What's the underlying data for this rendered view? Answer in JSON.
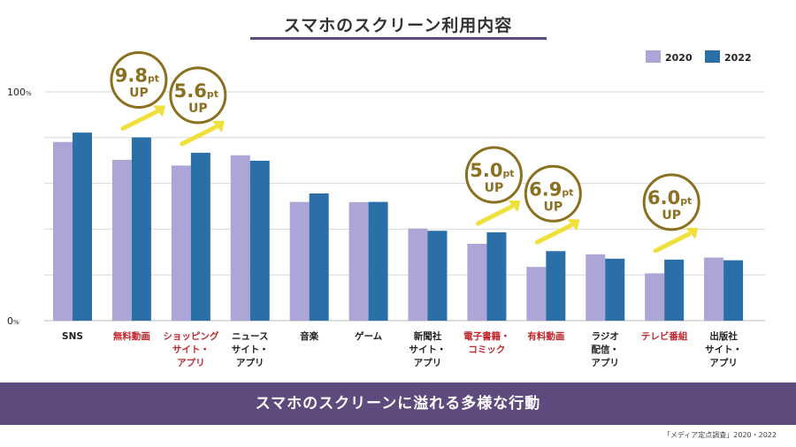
{
  "title": "スマホのスクリーン利用内容",
  "banner": "スマホのスクリーンに溢れる多様な行動",
  "source": "「メディア定点調査」2020・2022",
  "colors": {
    "s2020": "#aba6d6",
    "s2022": "#2a6fa8",
    "highlight": "#c0282d",
    "label": "#222222",
    "grid": "#d9d9d9",
    "badge_ring": "#8a7020",
    "badge_text": "#8a7020",
    "arrow": "#f0e03c"
  },
  "chart_data": {
    "type": "bar",
    "title": "スマホのスクリーン利用内容",
    "ylim": [
      0,
      100
    ],
    "y_ticks": [
      "0%",
      "100%"
    ],
    "grid": true,
    "legend_position": "top-right",
    "categories": [
      {
        "label": "SNS",
        "highlight": false
      },
      {
        "label": "無料動画",
        "highlight": true
      },
      {
        "label": "ショッピング\nサイト・\nアプリ",
        "highlight": true
      },
      {
        "label": "ニュース\nサイト・\nアプリ",
        "highlight": false
      },
      {
        "label": "音楽",
        "highlight": false
      },
      {
        "label": "ゲーム",
        "highlight": false
      },
      {
        "label": "新聞社\nサイト・\nアプリ",
        "highlight": false
      },
      {
        "label": "電子書籍・\nコミック",
        "highlight": true
      },
      {
        "label": "有料動画",
        "highlight": true
      },
      {
        "label": "ラジオ\n配信・\nアプリ",
        "highlight": false
      },
      {
        "label": "テレビ番組",
        "highlight": true
      },
      {
        "label": "出版社\nサイト・\nアプリ",
        "highlight": false
      }
    ],
    "series": [
      {
        "name": "2020",
        "values": [
          78.1,
          70.3,
          67.8,
          72.3,
          51.9,
          51.8,
          40.3,
          33.6,
          23.5,
          29.0,
          20.7,
          27.6
        ]
      },
      {
        "name": "2022",
        "values": [
          82.2,
          80.1,
          73.4,
          69.9,
          55.6,
          51.9,
          39.3,
          38.6,
          30.4,
          27.1,
          26.7,
          26.4
        ]
      }
    ],
    "annotations": [
      {
        "category_index": 1,
        "value": "9.8",
        "unit": "pt",
        "sub": "UP"
      },
      {
        "category_index": 2,
        "value": "5.6",
        "unit": "pt",
        "sub": "UP"
      },
      {
        "category_index": 7,
        "value": "5.0",
        "unit": "pt",
        "sub": "UP"
      },
      {
        "category_index": 8,
        "value": "6.9",
        "unit": "pt",
        "sub": "UP"
      },
      {
        "category_index": 10,
        "value": "6.0",
        "unit": "pt",
        "sub": "UP"
      }
    ]
  }
}
